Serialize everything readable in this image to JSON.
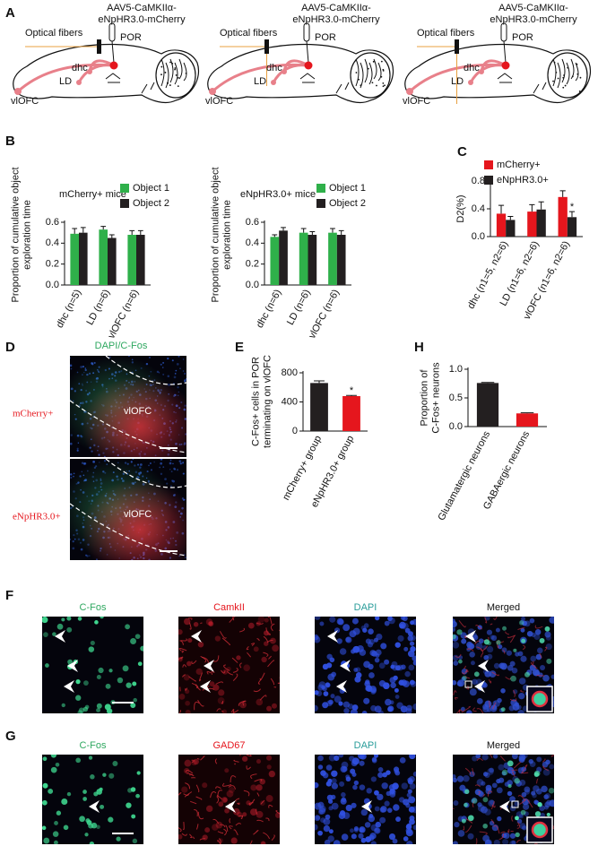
{
  "panel_labels": [
    "A",
    "B",
    "C",
    "D",
    "E",
    "F",
    "G",
    "H"
  ],
  "panel_a": [
    {
      "virus": [
        "AAV5-CaMKIIα-",
        "eNpHR3.0-mCherry"
      ],
      "fiber": "Optical fibers",
      "por": "POR",
      "dhc": "dhc",
      "ld": "LD",
      "vlofc": "vlOFC"
    },
    {
      "virus": [
        "AAV5-CaMKIIα-",
        "eNpHR3.0-mCherry"
      ],
      "fiber": "Optical fibers",
      "por": "POR",
      "dhc": "dhc",
      "ld": "LD",
      "vlofc": "vlOFC"
    },
    {
      "virus": [
        "AAV5-CaMKIIα-",
        "eNpHR3.0-mCherry"
      ],
      "fiber": "Optical fibers",
      "por": "POR",
      "dhc": "dhc",
      "ld": "LD",
      "vlofc": "vlOFC"
    }
  ],
  "chart_data": [
    {
      "type": "bar",
      "title": "mCherry+ mice",
      "y_label": [
        "Proportion of cumulative object",
        "exploration time"
      ],
      "categories": [
        "dhc (n=5)",
        "LD (n=6)",
        "vlOFC (n=6)"
      ],
      "series": [
        {
          "name": "Object 1",
          "color": "#2fb04a",
          "values": [
            0.49,
            0.53,
            0.48
          ],
          "errors": [
            0.05,
            0.03,
            0.04
          ]
        },
        {
          "name": "Object 2",
          "color": "#231f20",
          "values": [
            0.5,
            0.45,
            0.48
          ],
          "errors": [
            0.05,
            0.03,
            0.04
          ]
        }
      ],
      "ylim": [
        0,
        0.6
      ],
      "yticks": [
        {
          "value": 0,
          "label": "0.0"
        },
        0.2,
        0.4,
        0.6
      ]
    },
    {
      "type": "bar",
      "title": "eNpHR3.0+ mice",
      "y_label": [
        "Proportion of cumulative object",
        "exploration time"
      ],
      "categories": [
        "dhc (n=6)",
        "LD (n=6)",
        "vlOFC (n=6)"
      ],
      "series": [
        {
          "name": "Object 1",
          "color": "#2fb04a",
          "values": [
            0.46,
            0.5,
            0.5
          ],
          "errors": [
            0.02,
            0.04,
            0.04
          ]
        },
        {
          "name": "Object 2",
          "color": "#231f20",
          "values": [
            0.52,
            0.48,
            0.48
          ],
          "errors": [
            0.03,
            0.03,
            0.04
          ]
        }
      ],
      "ylim": [
        0,
        0.6
      ],
      "yticks": [
        {
          "value": 0,
          "label": "0.0"
        },
        0.2,
        0.4,
        0.6
      ]
    },
    {
      "type": "bar",
      "y_label": [
        "D2(%)"
      ],
      "categories": [
        "dhc (n1=5, n2=6)",
        "LD (n1=6, n2=6)",
        "vlOFC (n1=6, n2=6)"
      ],
      "series": [
        {
          "name": "mCherry+",
          "color": "#e5161d",
          "values": [
            0.33,
            0.36,
            0.57
          ],
          "errors": [
            0.12,
            0.1,
            0.09
          ]
        },
        {
          "name": "eNpHR3.0+",
          "color": "#231f20",
          "values": [
            0.24,
            0.39,
            0.28
          ],
          "errors": [
            0.05,
            0.11,
            0.08
          ]
        }
      ],
      "ylim": [
        0,
        0.8
      ],
      "yticks": [
        {
          "value": 0,
          "label": "0.0"
        },
        0.4,
        0.8
      ],
      "annotations": [
        "*"
      ]
    },
    {
      "type": "bar",
      "y_label": [
        "C-Fos+ cells in POR",
        "terminating on vlOFC"
      ],
      "categories": [
        "mCherry+ group",
        "eNpHR3.0+ group"
      ],
      "values": [
        660,
        480
      ],
      "errors": [
        30,
        10
      ],
      "colors": [
        "#231f20",
        "#e5161d"
      ],
      "ylim": [
        0,
        800
      ],
      "yticks": [
        0,
        400,
        800
      ],
      "annotations": [
        "*"
      ]
    },
    {
      "type": "bar",
      "y_label": [
        "Proportion of",
        "C-Fos+ neurons"
      ],
      "categories": [
        "Glutamatergic neurons",
        "GABAergic neurons"
      ],
      "values": [
        0.76,
        0.23
      ],
      "errors": [
        0.01,
        0.01
      ],
      "colors": [
        "#231f20",
        "#e5161d"
      ],
      "ylim": [
        0,
        1
      ],
      "yticks": [
        {
          "value": 0,
          "label": "0.0"
        },
        0.5,
        {
          "value": 1,
          "label": "1.0"
        }
      ]
    }
  ],
  "panel_d": {
    "title": "DAPI/C-Fos",
    "rows": [
      {
        "group": "mCherry+",
        "region": "vlOFC"
      },
      {
        "group": "eNpHR3.0+",
        "region": "vlOFC"
      }
    ]
  },
  "panel_f": {
    "channels": [
      "C-Fos",
      "CamkII",
      "DAPI",
      "Merged"
    ]
  },
  "panel_g": {
    "channels": [
      "C-Fos",
      "GAD67",
      "DAPI",
      "Merged"
    ]
  }
}
